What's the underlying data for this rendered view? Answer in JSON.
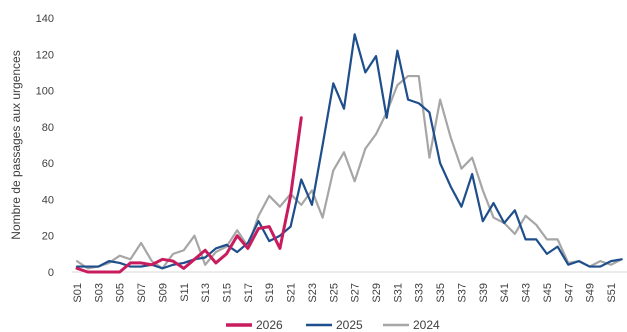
{
  "chart_data": {
    "type": "line",
    "title": "",
    "xlabel": "",
    "ylabel": "Nombre de passages aux urgences",
    "ylim": [
      0,
      140
    ],
    "yticks": [
      0,
      20,
      40,
      60,
      80,
      100,
      120,
      140
    ],
    "x_tick_labels": [
      "S01",
      "S03",
      "S05",
      "S07",
      "S09",
      "S11",
      "S13",
      "S15",
      "S17",
      "S19",
      "S21",
      "S23",
      "S25",
      "S27",
      "S29",
      "S31",
      "S33",
      "S35",
      "S37",
      "S39",
      "S41",
      "S43",
      "S45",
      "S47",
      "S49",
      "S51"
    ],
    "grid": false,
    "legend_position": "bottom",
    "series": [
      {
        "name": "2026",
        "color": "#c81c5e",
        "values": [
          2,
          0,
          0,
          0,
          0,
          5,
          5,
          4,
          7,
          6,
          2,
          7,
          12,
          5,
          10,
          20,
          13,
          24,
          25,
          13,
          42,
          85
        ]
      },
      {
        "name": "2025",
        "color": "#1f4e8c",
        "values": [
          3,
          3,
          3,
          6,
          5,
          3,
          3,
          4,
          2,
          4,
          5,
          7,
          8,
          13,
          15,
          11,
          16,
          28,
          17,
          20,
          25,
          51,
          37,
          70,
          104,
          90,
          131,
          110,
          119,
          85,
          122,
          95,
          93,
          88,
          60,
          47,
          36,
          54,
          28,
          38,
          27,
          34,
          18,
          18,
          10,
          14,
          4,
          6,
          3,
          3,
          6,
          7
        ]
      },
      {
        "name": "2024",
        "color": "#a6a6a6",
        "values": [
          6,
          2,
          3,
          5,
          9,
          7,
          16,
          6,
          2,
          10,
          12,
          20,
          4,
          11,
          14,
          23,
          14,
          31,
          42,
          36,
          43,
          37,
          45,
          30,
          56,
          66,
          50,
          68,
          76,
          88,
          103,
          108,
          108,
          63,
          95,
          74,
          57,
          63,
          45,
          30,
          27,
          21,
          31,
          26,
          18,
          18,
          5,
          6,
          3,
          6,
          4,
          7
        ]
      }
    ]
  }
}
